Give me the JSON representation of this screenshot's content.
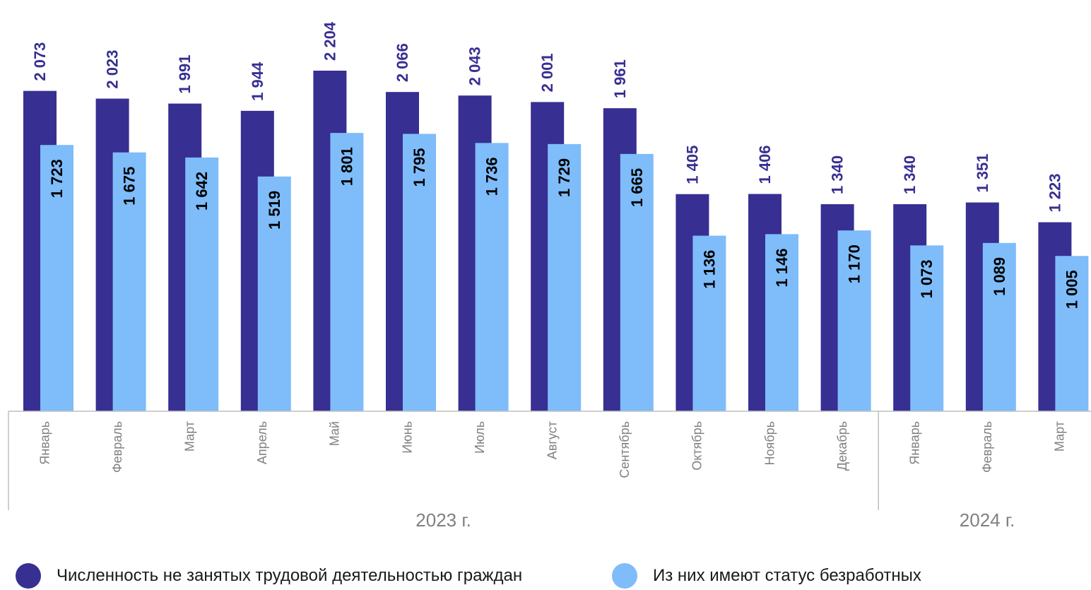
{
  "chart_data": {
    "type": "bar",
    "categories": [
      "Январь",
      "Февраль",
      "Март",
      "Апрель",
      "Май",
      "Июнь",
      "Июль",
      "Август",
      "Сентябрь",
      "Октябрь",
      "Ноябрь",
      "Декабрь",
      "Январь",
      "Февраль",
      "Март"
    ],
    "groups": [
      {
        "label": "2023 г.",
        "count": 12
      },
      {
        "label": "2024 г.",
        "count": 3
      }
    ],
    "series": [
      {
        "name": "Численность не занятых трудовой деятельностью граждан",
        "values": [
          2073,
          2023,
          1991,
          1944,
          2204,
          2066,
          2043,
          2001,
          1961,
          1405,
          1406,
          1340,
          1340,
          1351,
          1223
        ],
        "labels": [
          "2 073",
          "2 023",
          "1 991",
          "1 944",
          "2 204",
          "2 066",
          "2 043",
          "2 001",
          "1 961",
          "1 405",
          "1 406",
          "1 340",
          "1 340",
          "1 351",
          "1 223"
        ],
        "color": "#372f92"
      },
      {
        "name": "Из них имеют статус безработных",
        "values": [
          1723,
          1675,
          1642,
          1519,
          1801,
          1795,
          1736,
          1729,
          1665,
          1136,
          1146,
          1170,
          1073,
          1089,
          1005
        ],
        "labels": [
          "1 723",
          "1 675",
          "1 642",
          "1 519",
          "1 801",
          "1 795",
          "1 736",
          "1 729",
          "1 665",
          "1 136",
          "1 146",
          "1 170",
          "1 073",
          "1 089",
          "1 005"
        ],
        "color": "#7fbcfa"
      }
    ],
    "ylim": [
      0,
      2204
    ],
    "grid": false,
    "legend_position": "bottom"
  }
}
